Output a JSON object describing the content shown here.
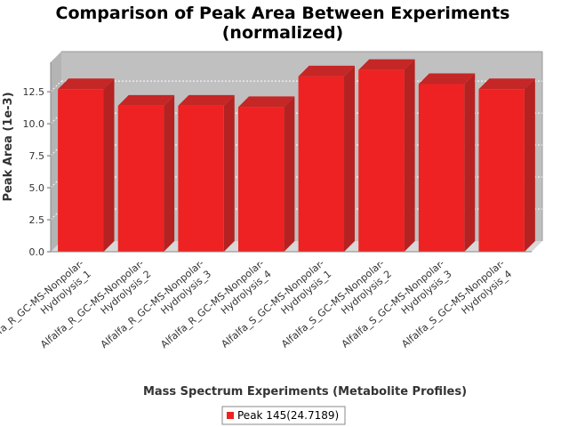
{
  "chart_data": {
    "type": "bar",
    "title_line1": "Comparison of Peak Area Between Experiments",
    "title_line2": "(normalized)",
    "xlabel": "Mass Spectrum Experiments (Metabolite Profiles)",
    "ylabel": "Peak Area (1e-3)",
    "yticks": [
      "0.0",
      "2.5",
      "5.0",
      "7.5",
      "10.0",
      "12.5"
    ],
    "ylim": [
      0,
      14.8
    ],
    "grid": true,
    "categories": [
      [
        "Alfalfa_R_GC-MS-Nonpolar-",
        "Hydrolysis_1"
      ],
      [
        "Alfalfa_R_GC-MS-Nonpolar-",
        "Hydrolysis_2"
      ],
      [
        "Alfalfa_R_GC-MS-Nonpolar-",
        "Hydrolysis_3"
      ],
      [
        "Alfalfa_R_GC-MS-Nonpolar-",
        "Hydrolysis_4"
      ],
      [
        "Alfalfa_S_GC-MS-Nonpolar-",
        "Hydrolysis_1"
      ],
      [
        "Alfalfa_S_GC-MS-Nonpolar-",
        "Hydrolysis_2"
      ],
      [
        "Alfalfa_S_GC-MS-Nonpolar-",
        "Hydrolysis_3"
      ],
      [
        "Alfalfa_S_GC-MS-Nonpolar-",
        "Hydrolysis_4"
      ]
    ],
    "series": [
      {
        "name": "Peak 145(24.7189)",
        "color": "#ee2222",
        "values": [
          12.7,
          11.4,
          11.4,
          11.3,
          13.7,
          14.2,
          13.1,
          12.7
        ]
      }
    ],
    "legend_position": "bottom"
  }
}
